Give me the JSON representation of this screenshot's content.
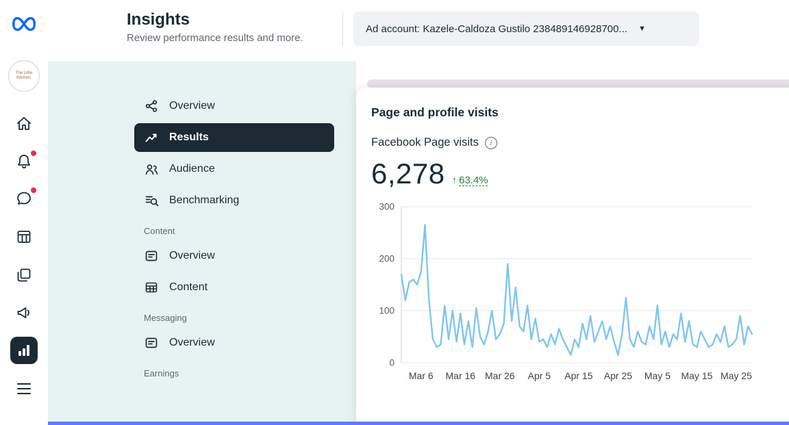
{
  "colors": {
    "accent-blue": "#0866ff",
    "badge-red": "#f0284a",
    "mint": "#e7f3f2",
    "pill-dark": "#1c2b33",
    "green": "#1d8348",
    "line-blue": "#7fc6ef",
    "bottom-bar": "#5e7cf7",
    "dropdown-bg": "#f0f2f5"
  },
  "icons": {
    "caret": "▼",
    "delta_arrow": "↑",
    "info": "i"
  },
  "rail": {
    "avatar_line1": "The Little",
    "avatar_line2": "Kitchen."
  },
  "header": {
    "title": "Insights",
    "subtitle": "Review performance results and more.",
    "ad_account": "Ad account: Kazele-Caldoza Gustilo 238489146928700..."
  },
  "sidebar": {
    "sections": [
      {
        "title": "",
        "items": [
          {
            "label": "Overview"
          },
          {
            "label": "Results",
            "selected": true
          },
          {
            "label": "Audience"
          },
          {
            "label": "Benchmarking"
          }
        ]
      },
      {
        "title": "Content",
        "items": [
          {
            "label": "Overview"
          },
          {
            "label": "Content"
          }
        ]
      },
      {
        "title": "Messaging",
        "items": [
          {
            "label": "Overview"
          }
        ]
      },
      {
        "title": "Earnings",
        "items": []
      }
    ]
  },
  "card": {
    "title": "Page and profile visits",
    "metric_label": "Facebook Page visits",
    "value": "6,278",
    "delta": "63.4%"
  },
  "chart_data": {
    "type": "line",
    "title": "Facebook Page visits",
    "ylim": [
      0,
      300
    ],
    "y_ticks": [
      0,
      100,
      200,
      300
    ],
    "grid": "horizontal",
    "legend": "none",
    "line_color": "#7fc6ef",
    "x_ticks": [
      "Mar 6",
      "Mar 16",
      "Mar 26",
      "Apr 5",
      "Apr 15",
      "Apr 25",
      "May 5",
      "May 15",
      "May 25"
    ],
    "x": [
      "Mar 1",
      "Mar 2",
      "Mar 3",
      "Mar 4",
      "Mar 5",
      "Mar 6",
      "Mar 7",
      "Mar 8",
      "Mar 9",
      "Mar 10",
      "Mar 11",
      "Mar 12",
      "Mar 13",
      "Mar 14",
      "Mar 15",
      "Mar 16",
      "Mar 17",
      "Mar 18",
      "Mar 19",
      "Mar 20",
      "Mar 21",
      "Mar 22",
      "Mar 23",
      "Mar 24",
      "Mar 25",
      "Mar 26",
      "Mar 27",
      "Mar 28",
      "Mar 29",
      "Mar 30",
      "Mar 31",
      "Apr 1",
      "Apr 2",
      "Apr 3",
      "Apr 4",
      "Apr 5",
      "Apr 6",
      "Apr 7",
      "Apr 8",
      "Apr 9",
      "Apr 10",
      "Apr 11",
      "Apr 12",
      "Apr 13",
      "Apr 14",
      "Apr 15",
      "Apr 16",
      "Apr 17",
      "Apr 18",
      "Apr 19",
      "Apr 20",
      "Apr 21",
      "Apr 22",
      "Apr 23",
      "Apr 24",
      "Apr 25",
      "Apr 26",
      "Apr 27",
      "Apr 28",
      "Apr 29",
      "Apr 30",
      "May 1",
      "May 2",
      "May 3",
      "May 4",
      "May 5",
      "May 6",
      "May 7",
      "May 8",
      "May 9",
      "May 10",
      "May 11",
      "May 12",
      "May 13",
      "May 14",
      "May 15",
      "May 16",
      "May 17",
      "May 18",
      "May 19",
      "May 20",
      "May 21",
      "May 22",
      "May 23",
      "May 24",
      "May 25",
      "May 26",
      "May 27",
      "May 28",
      "May 29"
    ],
    "values": [
      170,
      120,
      155,
      160,
      150,
      175,
      265,
      120,
      45,
      30,
      35,
      110,
      45,
      100,
      40,
      95,
      35,
      80,
      30,
      105,
      50,
      35,
      60,
      100,
      45,
      55,
      75,
      190,
      80,
      145,
      70,
      60,
      110,
      45,
      85,
      40,
      45,
      30,
      55,
      35,
      65,
      45,
      30,
      15,
      45,
      30,
      75,
      45,
      90,
      40,
      60,
      80,
      45,
      70,
      40,
      15,
      55,
      125,
      45,
      30,
      60,
      40,
      35,
      70,
      45,
      110,
      35,
      60,
      30,
      55,
      45,
      95,
      40,
      80,
      35,
      30,
      60,
      45,
      30,
      35,
      55,
      40,
      70,
      30,
      35,
      45,
      90,
      35,
      70,
      55
    ]
  }
}
